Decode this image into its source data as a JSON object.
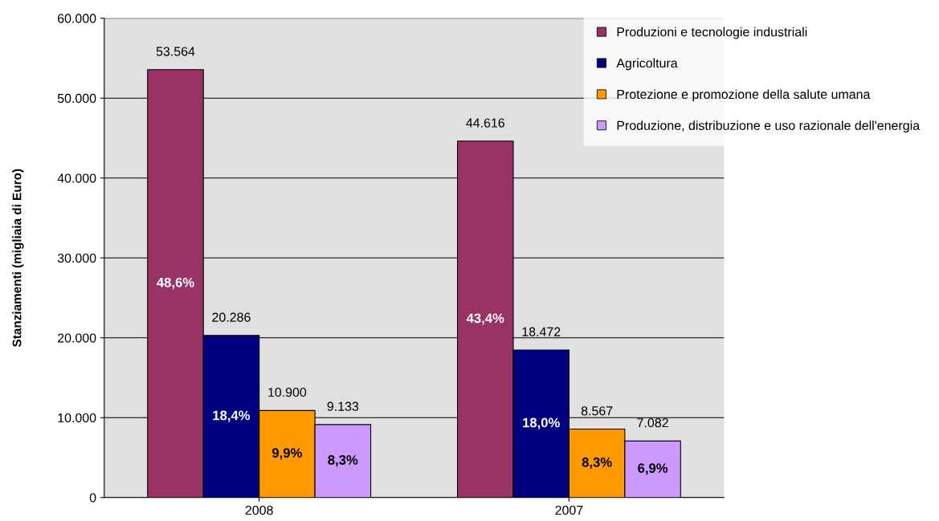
{
  "chart_data": {
    "type": "bar",
    "ylabel": "Stanziamenti (migliaia di Euro)",
    "categories": [
      "2008",
      "2007"
    ],
    "series": [
      {
        "name": "Produzioni e tecnologie industriali",
        "color": "#993366",
        "values": [
          53564,
          44616
        ],
        "value_labels": [
          "53.564",
          "44.616"
        ]
      },
      {
        "name": "Agricoltura",
        "color": "#000080",
        "values": [
          20286,
          18472
        ],
        "value_labels": [
          "20.286",
          "18.472"
        ]
      },
      {
        "name": "Protezione e promozione della salute umana",
        "color": "#ff9900",
        "values": [
          10900,
          8567
        ],
        "value_labels": [
          "10.900",
          "8.567"
        ]
      },
      {
        "name": "Produzione, distribuzione e uso razionale dell'energia",
        "color": "#cc99ff",
        "values": [
          9133,
          7082
        ],
        "value_labels": [
          "9.133",
          "7.082"
        ]
      }
    ],
    "annotations": [
      "48,6%",
      "18,4%",
      "9,9%",
      "8,3%",
      "43,4%",
      "18,0%",
      "8,3%",
      "6,9%"
    ],
    "ylim": [
      0,
      60000
    ],
    "yticks": [
      {
        "value": 0,
        "label": "0"
      },
      {
        "value": 10000,
        "label": "10.000"
      },
      {
        "value": 20000,
        "label": "20.000"
      },
      {
        "value": 30000,
        "label": "30.000"
      },
      {
        "value": 40000,
        "label": "40.000"
      },
      {
        "value": 50000,
        "label": "50.000"
      },
      {
        "value": 60000,
        "label": "60.000"
      }
    ],
    "grid": "y",
    "legend": "top right"
  }
}
